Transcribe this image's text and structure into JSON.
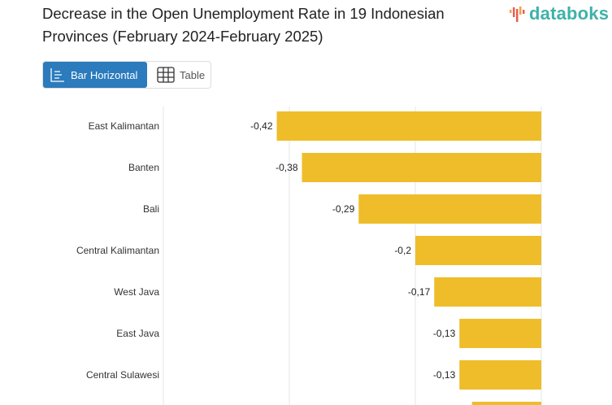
{
  "header": {
    "title": "Decrease in the Open Unemployment Rate in 19 Indonesian Provinces (February 2024-February 2025)",
    "logo": "databoks"
  },
  "view_toggle": {
    "bar_label": "Bar Horizontal",
    "table_label": "Table",
    "active": "Bar Horizontal"
  },
  "colors": {
    "bar": "#efbd2a",
    "active_button": "#2b7bbd",
    "logo": "#3fb2a9"
  },
  "chart_data": {
    "type": "bar",
    "orientation": "horizontal",
    "title": "Decrease in the Open Unemployment Rate in 19 Indonesian Provinces (February 2024-February 2025)",
    "categories": [
      "East Kalimantan",
      "Banten",
      "Bali",
      "Central Kalimantan",
      "West Java",
      "East Java",
      "Central Sulawesi",
      ""
    ],
    "values": [
      -0.42,
      -0.38,
      -0.29,
      -0.2,
      -0.17,
      -0.13,
      -0.13,
      -0.11
    ],
    "value_labels": [
      "-0,42",
      "-0,38",
      "-0,29",
      "-0,2",
      "-0,17",
      "-0,13",
      "-0,13",
      ""
    ],
    "xlim": [
      -0.6,
      0
    ],
    "grid": true,
    "gridlines": [
      -0.6,
      -0.4,
      -0.2,
      0
    ]
  }
}
